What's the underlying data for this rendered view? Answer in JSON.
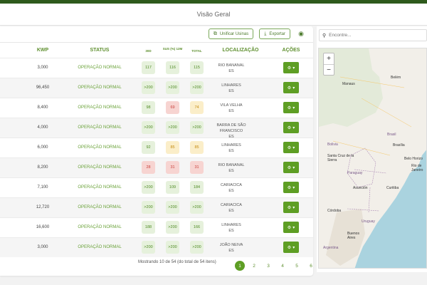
{
  "header": {
    "title": "Visão Geral"
  },
  "toolbar": {
    "unify_label": "Unificar Usinas",
    "export_label": "Exportar"
  },
  "table": {
    "headers": {
      "kwp": "KWP",
      "status": "STATUS",
      "d30": "30D",
      "sus": "SUS (%) 12M",
      "total": "TOTAL",
      "location": "LOCALIZAÇÃO",
      "actions": "AÇÕES"
    },
    "rows": [
      {
        "kwp": "3,000",
        "status": "OPERAÇÃO NORMAL",
        "d30": "117",
        "sus": "116",
        "total": "115",
        "city": "RIO BANANAL",
        "state": "ES"
      },
      {
        "kwp": "96,450",
        "status": "OPERAÇÃO NORMAL",
        "d30": ">200",
        "sus": ">200",
        "total": ">200",
        "city": "LINHARES",
        "state": "ES"
      },
      {
        "kwp": "8,400",
        "status": "OPERAÇÃO NORMAL",
        "d30": "98",
        "sus": "69",
        "total": "74",
        "city": "VILA VELHA",
        "state": "ES"
      },
      {
        "kwp": "4,000",
        "status": "OPERAÇÃO NORMAL",
        "d30": ">200",
        "sus": ">200",
        "total": ">200",
        "city": "BARRA DE SÃO FRANCISCO",
        "state": "ES"
      },
      {
        "kwp": "6,000",
        "status": "OPERAÇÃO NORMAL",
        "d30": "92",
        "sus": "85",
        "total": "85",
        "city": "LINHARES",
        "state": "ES"
      },
      {
        "kwp": "8,200",
        "status": "OPERAÇÃO NORMAL",
        "d30": "28",
        "sus": "31",
        "total": "31",
        "city": "RIO BANANAL",
        "state": "ES"
      },
      {
        "kwp": "7,100",
        "status": "OPERAÇÃO NORMAL",
        "d30": ">200",
        "sus": "109",
        "total": "184",
        "city": "CARIACICA",
        "state": "ES"
      },
      {
        "kwp": "12,720",
        "status": "OPERAÇÃO NORMAL",
        "d30": ">200",
        "sus": ">200",
        "total": ">200",
        "city": "CARIACICA",
        "state": "ES"
      },
      {
        "kwp": "16,600",
        "status": "OPERAÇÃO NORMAL",
        "d30": "188",
        "sus": ">200",
        "total": "166",
        "city": "LINHARES",
        "state": "ES"
      },
      {
        "kwp": "3,000",
        "status": "OPERAÇÃO NORMAL",
        "d30": ">200",
        "sus": ">200",
        "total": ">200",
        "city": "JOÃO NEIVA",
        "state": "ES"
      }
    ],
    "footer": "Mostrando 10 de 54 (do total de 54 itens)"
  },
  "pagination": {
    "pages": [
      "1",
      "2",
      "3",
      "4",
      "5",
      "6"
    ],
    "current": "1"
  },
  "search": {
    "placeholder": "Encontre..."
  },
  "map": {
    "zoom_in": "+",
    "zoom_out": "−",
    "labels": [
      "Manaus",
      "Belém",
      "Brasil",
      "Brasília",
      "Belo Horizo",
      "Rio de Janeiro",
      "Bolivia",
      "Santa Cruz de la Sierra",
      "Paraguay",
      "Asunción",
      "Curitiba",
      "Córdoba",
      "Uruguay",
      "Buenos Aires",
      "Argentina"
    ]
  },
  "colors": {
    "brand": "#2e5a1c",
    "accent": "#5e9e24",
    "good": "#e6f1dc",
    "warn": "#fbeec9",
    "bad": "#f7d4d1"
  }
}
